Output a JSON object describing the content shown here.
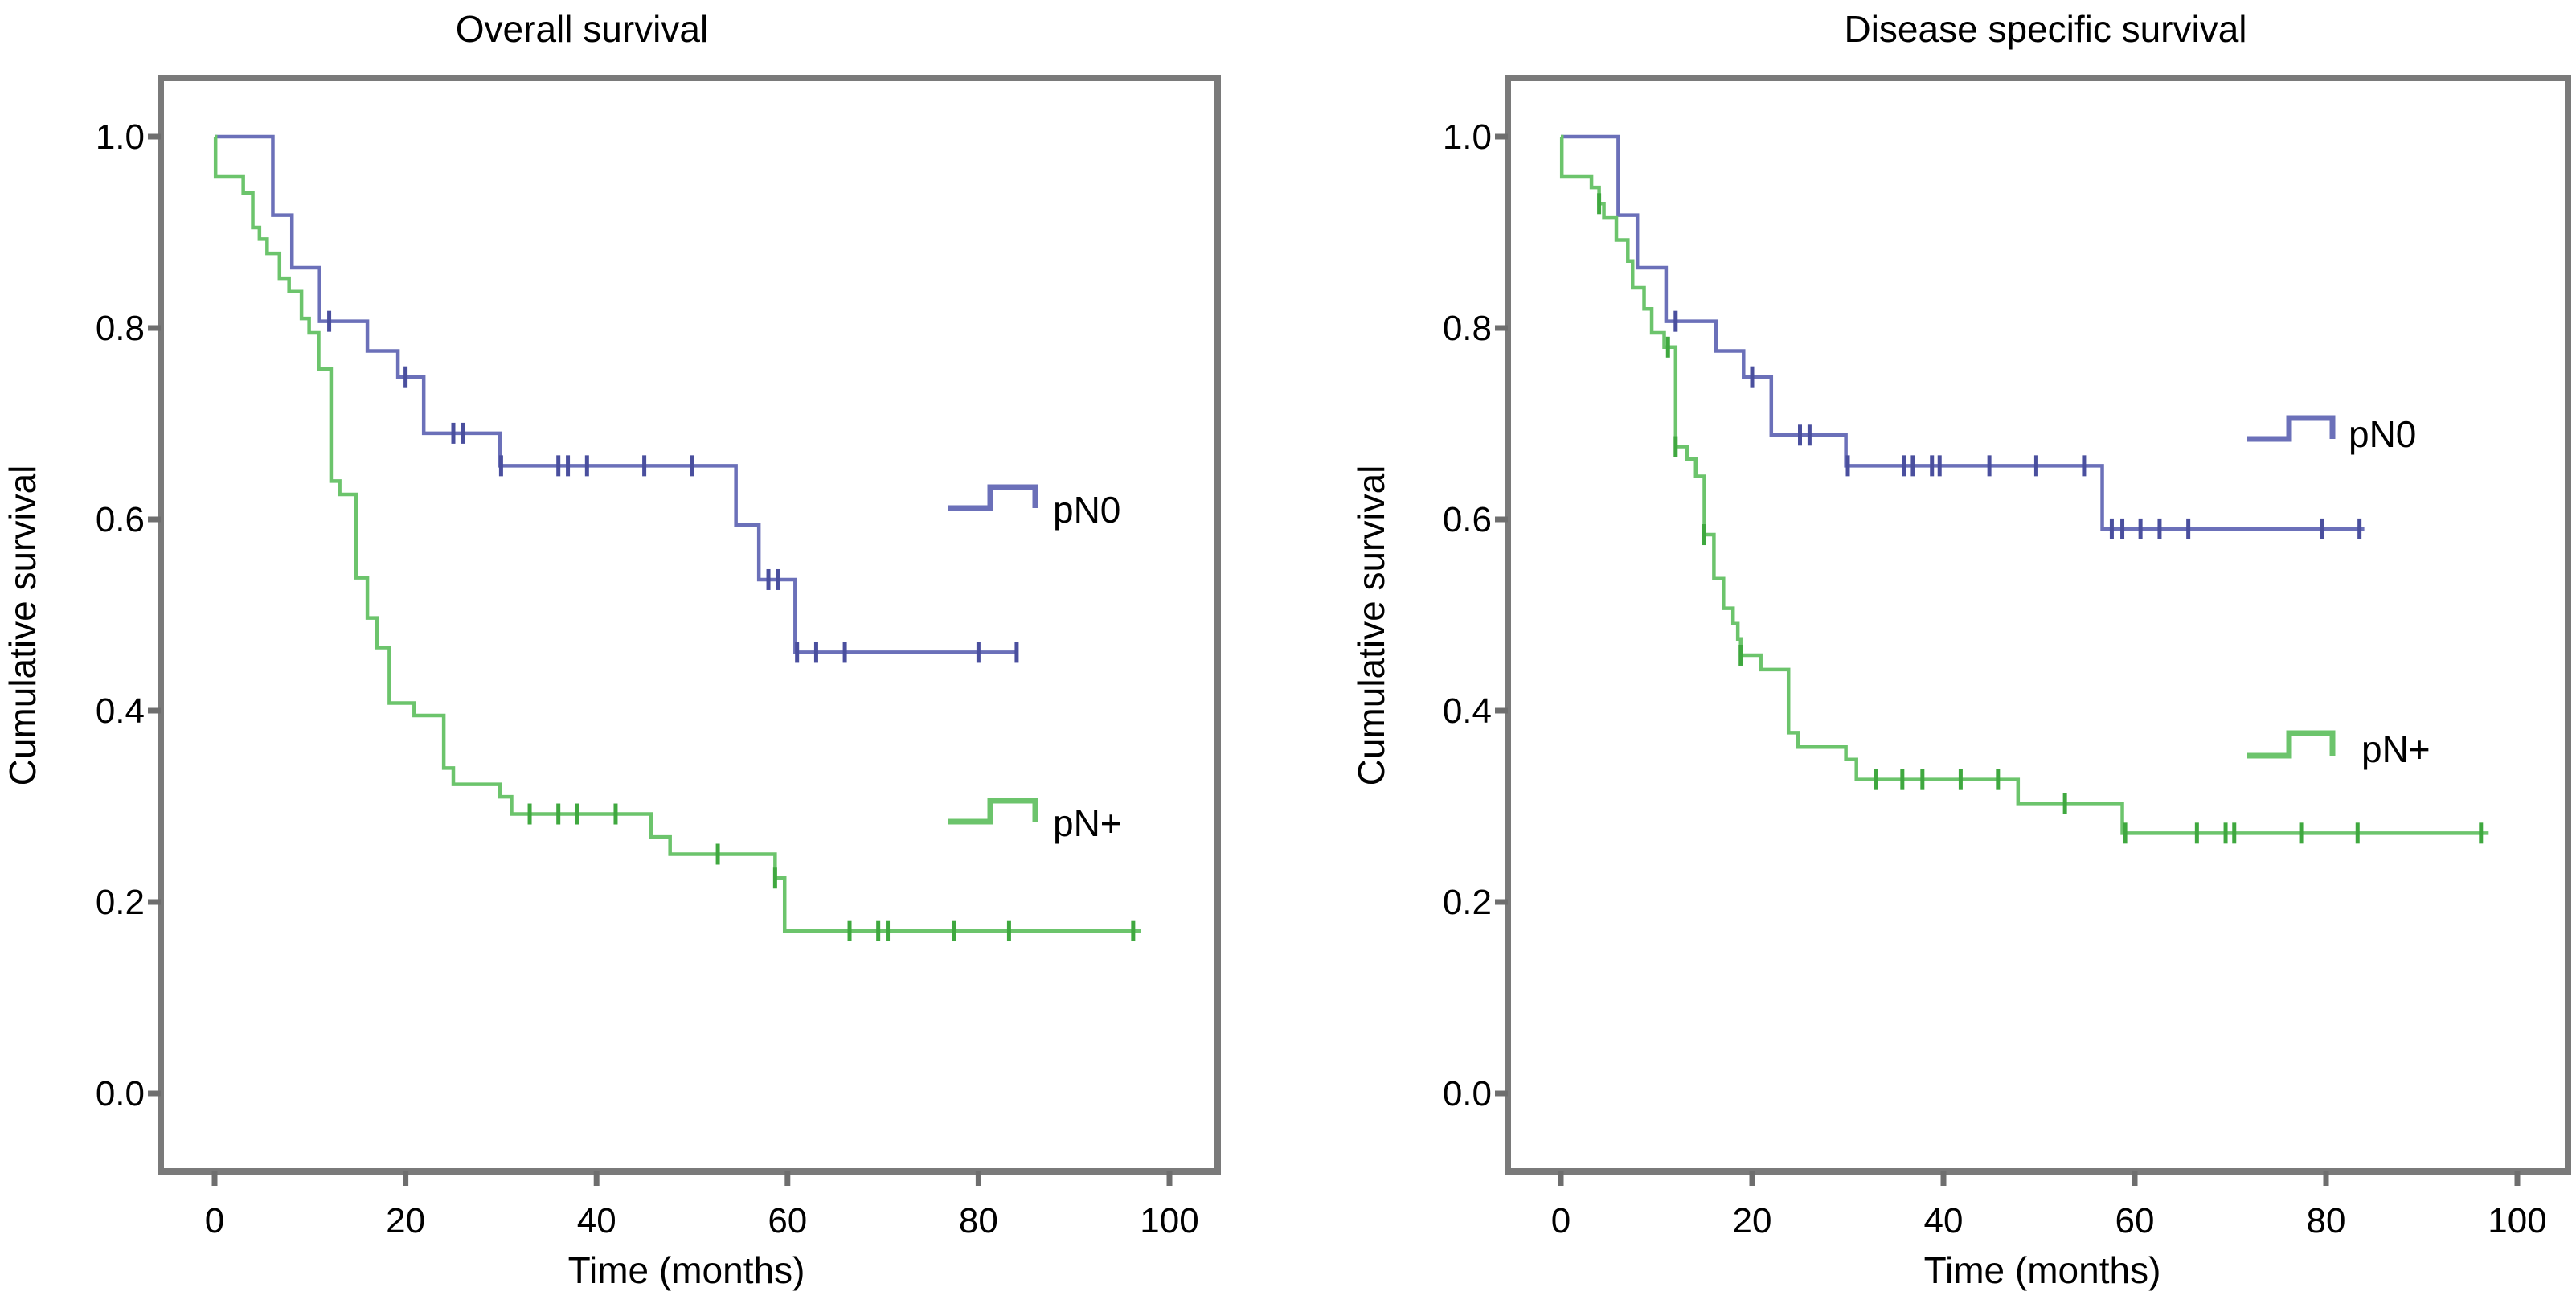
{
  "colors": {
    "pN0": "#6b70b9",
    "pNplus": "#6cc46c",
    "censor_pN0": "#4a4f9e",
    "censor_pNplus": "#3fa83f",
    "frame": "#7a7a7a"
  },
  "chart_data": [
    {
      "type": "line",
      "subtype": "kaplan-meier step",
      "title": "Overall survival",
      "xlabel": "Time (months)",
      "ylabel": "Cumulative survival",
      "xlim": [
        0,
        100
      ],
      "ylim": [
        0,
        1.0
      ],
      "xticks": [
        "0",
        "20",
        "40",
        "60",
        "80",
        "100"
      ],
      "yticks": [
        "0.0",
        "0.2",
        "0.4",
        "0.6",
        "0.8",
        "1.0"
      ],
      "grid": false,
      "legend": [
        {
          "label": "pN0",
          "series": "pN0",
          "placement": "right-middle-upper"
        },
        {
          "label": "pN+",
          "series": "pNplus",
          "placement": "right-middle-lower"
        }
      ],
      "series": [
        {
          "name": "pN0",
          "steps": [
            [
              0,
              1.0
            ],
            [
              6.1,
              0.918
            ],
            [
              8.1,
              0.863
            ],
            [
              11.0,
              0.807
            ],
            [
              16.0,
              0.776
            ],
            [
              19.2,
              0.749
            ],
            [
              21.9,
              0.69
            ],
            [
              29.9,
              0.656
            ],
            [
              54.6,
              0.594
            ],
            [
              57.0,
              0.537
            ],
            [
              60.8,
              0.461
            ]
          ],
          "end": 84,
          "censored": [
            12,
            20,
            25,
            26,
            30,
            36,
            37,
            39,
            45,
            50,
            58,
            59,
            61,
            63,
            66,
            80,
            84
          ]
        },
        {
          "name": "pN+",
          "steps": [
            [
              0,
              1.0
            ],
            [
              0.1,
              0.958
            ],
            [
              3.0,
              0.941
            ],
            [
              4.0,
              0.905
            ],
            [
              4.7,
              0.893
            ],
            [
              5.5,
              0.878
            ],
            [
              6.8,
              0.852
            ],
            [
              7.8,
              0.838
            ],
            [
              9.1,
              0.81
            ],
            [
              9.9,
              0.795
            ],
            [
              10.9,
              0.757
            ],
            [
              12.2,
              0.64
            ],
            [
              13.1,
              0.626
            ],
            [
              14.8,
              0.539
            ],
            [
              16.0,
              0.497
            ],
            [
              17.0,
              0.466
            ],
            [
              18.3,
              0.408
            ],
            [
              20.9,
              0.395
            ],
            [
              24.0,
              0.34
            ],
            [
              25.0,
              0.323
            ],
            [
              29.9,
              0.31
            ],
            [
              31.1,
              0.292
            ],
            [
              45.7,
              0.268
            ],
            [
              47.7,
              0.25
            ],
            [
              58.7,
              0.225
            ],
            [
              59.7,
              0.17
            ]
          ],
          "end": 97,
          "censored": [
            33,
            36,
            38,
            42,
            52.7,
            58.7,
            66.5,
            69.5,
            70.5,
            77.4,
            83.2,
            96.2
          ]
        }
      ]
    },
    {
      "type": "line",
      "subtype": "kaplan-meier step",
      "title": "Disease specific survival",
      "xlabel": "Time (months)",
      "ylabel": "Cumulative survival",
      "xlim": [
        0,
        100
      ],
      "ylim": [
        0,
        1.0
      ],
      "xticks": [
        "0",
        "20",
        "40",
        "60",
        "80",
        "100"
      ],
      "yticks": [
        "0.0",
        "0.2",
        "0.4",
        "0.6",
        "0.8",
        "1.0"
      ],
      "grid": false,
      "legend": [
        {
          "label": "pN0",
          "series": "pN0",
          "placement": "right-middle-upper"
        },
        {
          "label": "pN+",
          "series": "pNplus",
          "placement": "right-middle-lower"
        }
      ],
      "series": [
        {
          "name": "pN0",
          "steps": [
            [
              0,
              1.0
            ],
            [
              6.0,
              0.918
            ],
            [
              8.0,
              0.863
            ],
            [
              11.0,
              0.807
            ],
            [
              16.2,
              0.776
            ],
            [
              19.1,
              0.749
            ],
            [
              22.0,
              0.688
            ],
            [
              29.8,
              0.656
            ],
            [
              56.6,
              0.59
            ]
          ],
          "end": 84,
          "censored": [
            12,
            20,
            25,
            26,
            30,
            35.9,
            36.8,
            38.8,
            39.6,
            44.8,
            49.7,
            54.7,
            57.6,
            58.7,
            60.6,
            62.6,
            65.6,
            79.6,
            83.5
          ]
        },
        {
          "name": "pN+",
          "steps": [
            [
              0,
              1.0
            ],
            [
              0.1,
              0.958
            ],
            [
              3.2,
              0.947
            ],
            [
              4.0,
              0.93
            ],
            [
              4.5,
              0.915
            ],
            [
              5.8,
              0.892
            ],
            [
              7.0,
              0.87
            ],
            [
              7.5,
              0.842
            ],
            [
              8.7,
              0.82
            ],
            [
              9.5,
              0.795
            ],
            [
              10.8,
              0.78
            ],
            [
              12.0,
              0.676
            ],
            [
              13.2,
              0.663
            ],
            [
              14.1,
              0.645
            ],
            [
              15.0,
              0.584
            ],
            [
              16.0,
              0.538
            ],
            [
              17.0,
              0.507
            ],
            [
              18.0,
              0.491
            ],
            [
              18.5,
              0.475
            ],
            [
              18.8,
              0.458
            ],
            [
              20.9,
              0.443
            ],
            [
              23.8,
              0.377
            ],
            [
              24.8,
              0.362
            ],
            [
              29.8,
              0.349
            ],
            [
              30.9,
              0.328
            ],
            [
              47.8,
              0.303
            ],
            [
              58.7,
              0.272
            ]
          ],
          "end": 97,
          "censored": [
            4.0,
            11.2,
            12.0,
            15.0,
            18.8,
            32.9,
            35.7,
            37.8,
            41.8,
            45.7,
            52.7,
            59.0,
            66.5,
            69.5,
            70.4,
            77.4,
            83.3,
            96.2
          ]
        }
      ]
    }
  ]
}
